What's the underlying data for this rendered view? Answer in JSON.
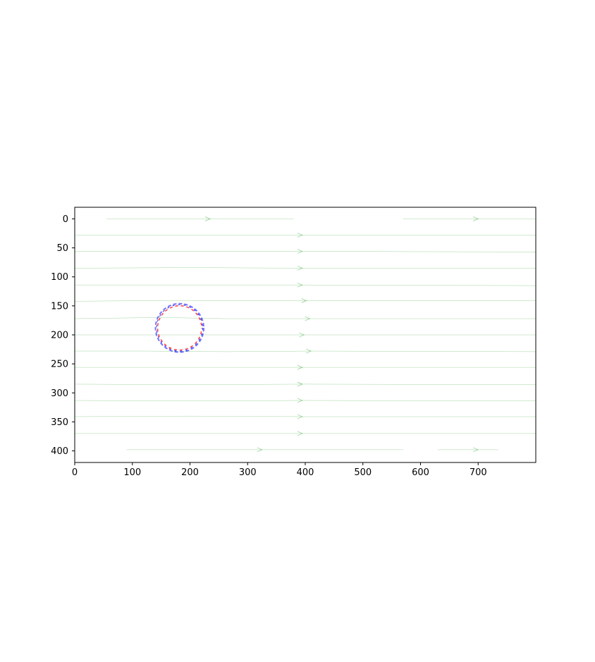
{
  "chart_data": {
    "type": "streamplot",
    "title": "",
    "xlabel": "",
    "ylabel": "",
    "xlim": [
      0,
      800
    ],
    "ylim": [
      420,
      -20
    ],
    "y_axis_inverted": true,
    "grid": false,
    "legend": "none",
    "x_ticks": [
      {
        "value": 0,
        "label": "0"
      },
      {
        "value": 100,
        "label": "100"
      },
      {
        "value": 200,
        "label": "200"
      },
      {
        "value": 300,
        "label": "300"
      },
      {
        "value": 400,
        "label": "400"
      },
      {
        "value": 500,
        "label": "500"
      },
      {
        "value": 600,
        "label": "600"
      },
      {
        "value": 700,
        "label": "700"
      }
    ],
    "y_ticks": [
      {
        "value": 0,
        "label": "0"
      },
      {
        "value": 50,
        "label": "50"
      },
      {
        "value": 100,
        "label": "100"
      },
      {
        "value": 150,
        "label": "150"
      },
      {
        "value": 200,
        "label": "200"
      },
      {
        "value": 250,
        "label": "250"
      },
      {
        "value": 300,
        "label": "300"
      },
      {
        "value": 350,
        "label": "350"
      },
      {
        "value": 400,
        "label": "400"
      }
    ],
    "streamline_color": "#2ca02c",
    "streamlines": [
      {
        "points": [
          [
            55,
            0
          ],
          [
            200,
            0
          ],
          [
            380,
            0
          ]
        ],
        "arrow": [
          235,
          0
        ]
      },
      {
        "points": [
          [
            570,
            0
          ],
          [
            700,
            0
          ],
          [
            800,
            0
          ]
        ],
        "arrow": [
          700,
          0
        ]
      },
      {
        "points": [
          [
            0,
            28
          ],
          [
            200,
            28
          ],
          [
            400,
            28
          ],
          [
            800,
            28
          ]
        ],
        "arrow": [
          395,
          28
        ]
      },
      {
        "points": [
          [
            0,
            56
          ],
          [
            200,
            56
          ],
          [
            400,
            56
          ],
          [
            800,
            57
          ]
        ],
        "arrow": [
          395,
          56
        ]
      },
      {
        "points": [
          [
            0,
            85
          ],
          [
            200,
            84
          ],
          [
            400,
            85
          ],
          [
            800,
            85
          ]
        ],
        "arrow": [
          395,
          85
        ]
      },
      {
        "points": [
          [
            0,
            114
          ],
          [
            200,
            114
          ],
          [
            400,
            114
          ],
          [
            800,
            115
          ]
        ],
        "arrow": [
          395,
          114
        ]
      },
      {
        "points": [
          [
            0,
            142
          ],
          [
            120,
            141
          ],
          [
            250,
            141
          ],
          [
            400,
            141
          ],
          [
            800,
            141
          ]
        ],
        "arrow": [
          402,
          141
        ]
      },
      {
        "points": [
          [
            0,
            172
          ],
          [
            150,
            170
          ],
          [
            260,
            172
          ],
          [
            400,
            172
          ],
          [
            800,
            172
          ]
        ],
        "arrow": [
          408,
          172
        ]
      },
      {
        "points": [
          [
            0,
            200
          ],
          [
            140,
            200
          ],
          [
            260,
            200
          ],
          [
            400,
            200
          ],
          [
            800,
            200
          ]
        ],
        "arrow": [
          398,
          200
        ]
      },
      {
        "points": [
          [
            0,
            228
          ],
          [
            120,
            228
          ],
          [
            260,
            229
          ],
          [
            410,
            228
          ],
          [
            800,
            229
          ]
        ],
        "arrow": [
          410,
          228
        ]
      },
      {
        "points": [
          [
            0,
            256
          ],
          [
            200,
            256
          ],
          [
            400,
            256
          ],
          [
            800,
            256
          ]
        ],
        "arrow": [
          395,
          256
        ]
      },
      {
        "points": [
          [
            0,
            285
          ],
          [
            200,
            286
          ],
          [
            400,
            285
          ],
          [
            800,
            286
          ]
        ],
        "arrow": [
          395,
          285
        ]
      },
      {
        "points": [
          [
            0,
            313
          ],
          [
            200,
            314
          ],
          [
            400,
            313
          ],
          [
            800,
            314
          ]
        ],
        "arrow": [
          395,
          313
        ]
      },
      {
        "points": [
          [
            0,
            341
          ],
          [
            200,
            340
          ],
          [
            400,
            341
          ],
          [
            800,
            341
          ]
        ],
        "arrow": [
          395,
          341
        ]
      },
      {
        "points": [
          [
            0,
            370
          ],
          [
            200,
            370
          ],
          [
            400,
            370
          ],
          [
            800,
            370
          ]
        ],
        "arrow": [
          395,
          370
        ]
      },
      {
        "points": [
          [
            90,
            398
          ],
          [
            300,
            398
          ],
          [
            570,
            398
          ]
        ],
        "arrow": [
          325,
          398
        ]
      },
      {
        "points": [
          [
            630,
            398
          ],
          [
            700,
            398
          ],
          [
            735,
            398
          ]
        ],
        "arrow": [
          700,
          398
        ]
      }
    ],
    "obstacle": {
      "shape": "circle",
      "center": [
        182,
        188
      ],
      "radius": 40,
      "colors": [
        "#0000ff",
        "#ff0000"
      ]
    }
  }
}
